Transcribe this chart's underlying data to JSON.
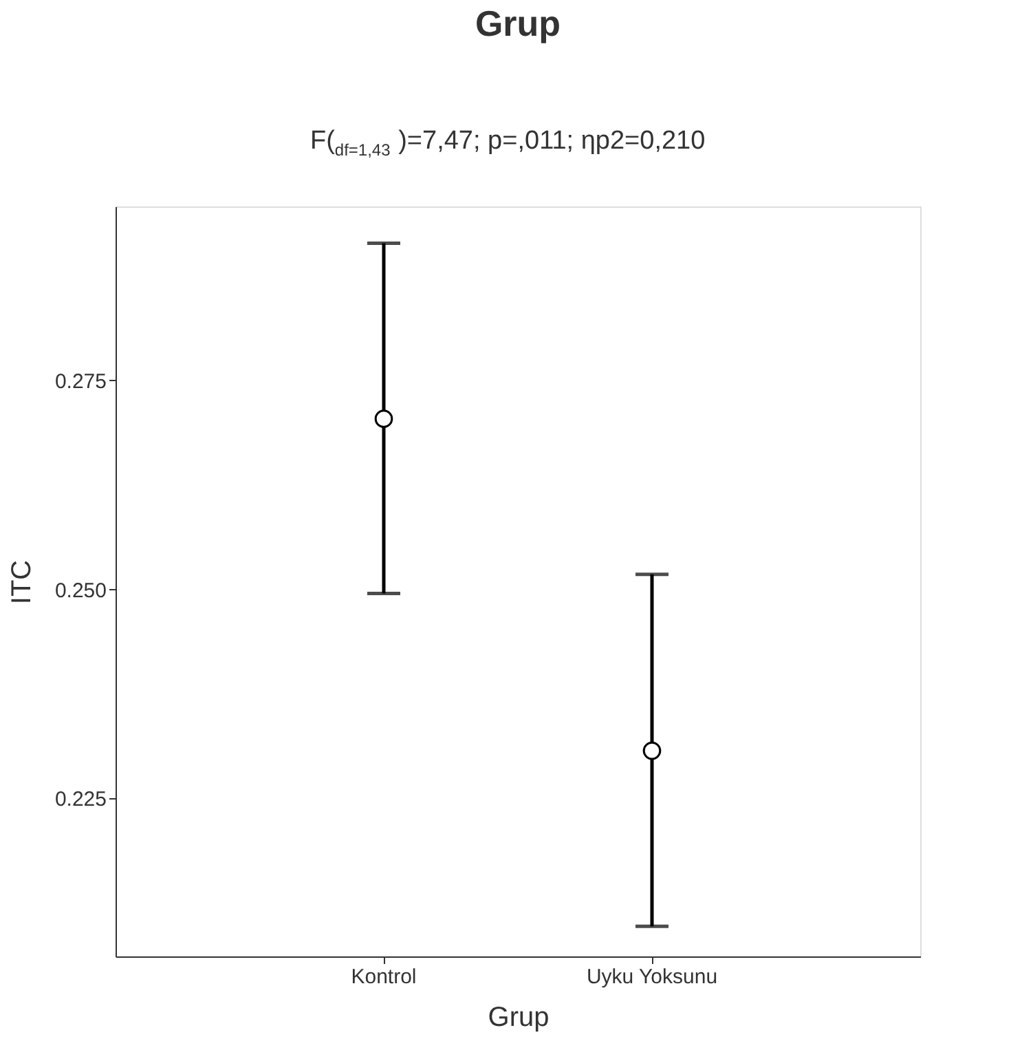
{
  "chart_data": {
    "type": "scatter",
    "title": "Grup",
    "subtitle": "F($_{df=1,43}$)=7,47; p=,011; ηp2=0,210",
    "xlabel": "Grup",
    "ylabel": "ITC",
    "categories": [
      "Kontrol",
      "Uyku Yoksunu"
    ],
    "values": [
      0.2704,
      0.2307
    ],
    "errors": [
      [
        0.2495,
        0.2914
      ],
      [
        0.2097,
        0.2518
      ]
    ],
    "ylim": [
      0.2061,
      0.2958
    ],
    "yticks": [
      {
        "value": 0.225,
        "label": "0.225"
      },
      {
        "value": 0.25,
        "label": "0.250"
      },
      {
        "value": 0.275,
        "label": "0.275"
      }
    ],
    "color": "#000000",
    "marker": "circle",
    "grid": false,
    "legend": false
  }
}
